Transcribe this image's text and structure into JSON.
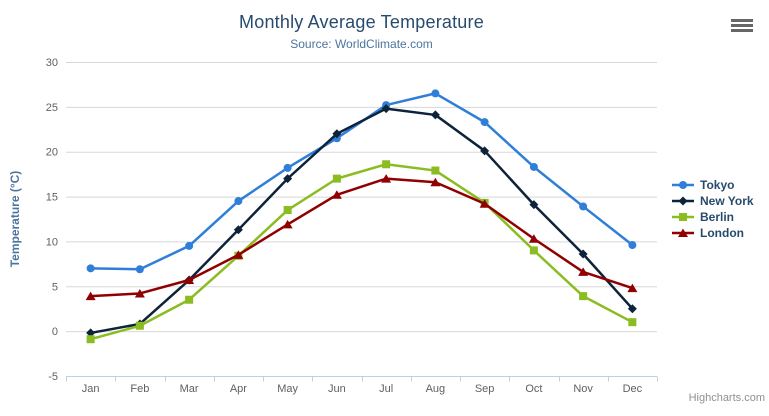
{
  "credits_label": "Highcharts.com",
  "menu_icon": "hamburger-menu-icon",
  "styles": {
    "title_color": "#274b6d",
    "subtitle_color": "#4d759e",
    "axis_label_color": "#606060",
    "axis_line_color": "#c0d0e0",
    "grid_color": "#d8d8d8",
    "legend_text_color": "#274b6d",
    "credits_color": "#909090"
  },
  "chart_data": {
    "type": "line",
    "title": "Monthly Average Temperature",
    "subtitle": "Source: WorldClimate.com",
    "categories": [
      "Jan",
      "Feb",
      "Mar",
      "Apr",
      "May",
      "Jun",
      "Jul",
      "Aug",
      "Sep",
      "Oct",
      "Nov",
      "Dec"
    ],
    "xlabel": "",
    "ylabel": "Temperature (°C)",
    "ylim": [
      -5,
      30
    ],
    "ytick_step": 5,
    "yticks": [
      -5,
      0,
      5,
      10,
      15,
      20,
      25,
      30
    ],
    "grid": true,
    "legend_position": "right",
    "series": [
      {
        "name": "Tokyo",
        "color": "#2f7ed8",
        "marker": "circle",
        "values": [
          7.0,
          6.9,
          9.5,
          14.5,
          18.2,
          21.5,
          25.2,
          26.5,
          23.3,
          18.3,
          13.9,
          9.6
        ]
      },
      {
        "name": "New York",
        "color": "#0d233a",
        "marker": "diamond",
        "values": [
          -0.2,
          0.8,
          5.7,
          11.3,
          17.0,
          22.0,
          24.8,
          24.1,
          20.1,
          14.1,
          8.6,
          2.5
        ]
      },
      {
        "name": "Berlin",
        "color": "#8bbc21",
        "marker": "square",
        "values": [
          -0.9,
          0.6,
          3.5,
          8.4,
          13.5,
          17.0,
          18.6,
          17.9,
          14.3,
          9.0,
          3.9,
          1.0
        ]
      },
      {
        "name": "London",
        "color": "#910000",
        "marker": "triangle",
        "values": [
          3.9,
          4.2,
          5.7,
          8.5,
          11.9,
          15.2,
          17.0,
          16.6,
          14.2,
          10.3,
          6.6,
          4.8
        ]
      }
    ]
  }
}
